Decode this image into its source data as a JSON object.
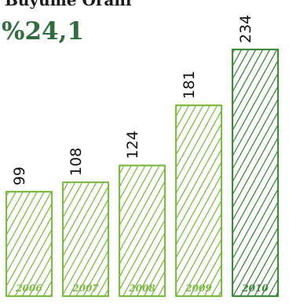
{
  "header": {
    "title": "Büyüme Oranı",
    "growth_rate": "%24,1"
  },
  "colors": {
    "bar_stroke_light": "#7dbb45",
    "bar_stroke_dark": "#3f8a3a",
    "value_text": "#111111",
    "growth_text": "#2f6e3c"
  },
  "chart_data": {
    "type": "bar",
    "categories": [
      "2006",
      "2007",
      "2008",
      "2009",
      "2010"
    ],
    "values": [
      99,
      108,
      124,
      181,
      234
    ],
    "title": "Büyüme Oranı",
    "subtitle": "%24,1",
    "xlabel": "",
    "ylabel": "",
    "ylim": [
      0,
      234
    ],
    "grid": false,
    "legend": "none"
  }
}
